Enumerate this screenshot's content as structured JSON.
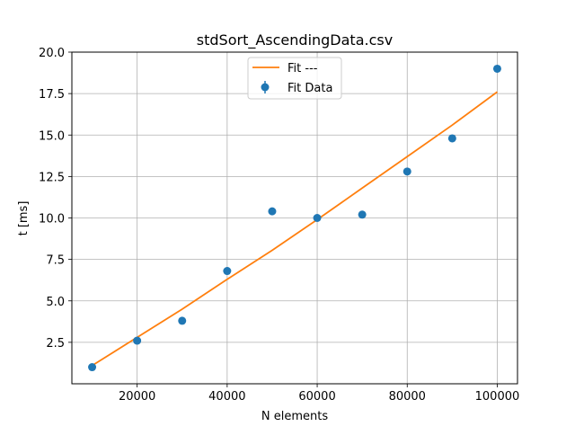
{
  "chart_data": {
    "type": "scatter",
    "title": "stdSort_AscendingData.csv",
    "xlabel": "N elements",
    "ylabel": "t [ms]",
    "xlim": [
      5500,
      104500
    ],
    "ylim": [
      0,
      20
    ],
    "grid": true,
    "xticks": [
      20000,
      40000,
      60000,
      80000,
      100000
    ],
    "yticks": [
      2.5,
      5.0,
      7.5,
      10.0,
      12.5,
      15.0,
      17.5,
      20.0
    ],
    "xtick_labels": [
      "20000",
      "40000",
      "60000",
      "80000",
      "100000"
    ],
    "ytick_labels": [
      "2.5",
      "5.0",
      "7.5",
      "10.0",
      "12.5",
      "15.0",
      "17.5",
      "20.0"
    ],
    "legend_position": "top-center",
    "legend": [
      {
        "label": "Fit ---",
        "kind": "line",
        "color": "#ff7f0e"
      },
      {
        "label": "Fit Data",
        "kind": "errorbar-marker",
        "color": "#1f77b4"
      }
    ],
    "series": [
      {
        "name": "Fit Data",
        "kind": "scatter",
        "color": "#1f77b4",
        "x": [
          10000,
          20000,
          30000,
          40000,
          50000,
          60000,
          70000,
          80000,
          90000,
          100000
        ],
        "y": [
          1.0,
          2.6,
          3.8,
          6.8,
          10.4,
          10.0,
          10.2,
          12.8,
          14.8,
          19.0
        ]
      },
      {
        "name": "Fit ---",
        "kind": "line",
        "color": "#ff7f0e",
        "x": [
          10000,
          20000,
          30000,
          40000,
          50000,
          60000,
          70000,
          80000,
          90000,
          100000
        ],
        "y": [
          1.1,
          2.8,
          4.5,
          6.3,
          8.05,
          9.9,
          11.8,
          13.7,
          15.6,
          17.6
        ]
      }
    ]
  }
}
